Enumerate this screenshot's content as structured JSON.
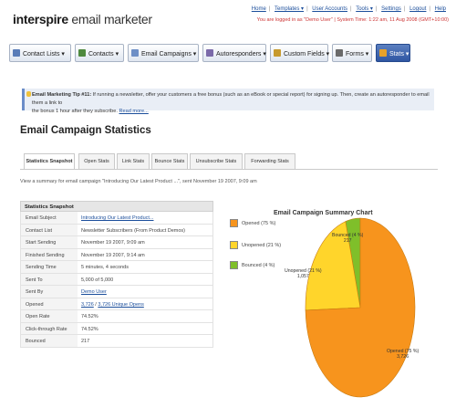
{
  "header": {
    "logo_prefix": "interspire",
    "logo_suffix": " email marketer",
    "links": [
      "Home",
      "Templates ▾",
      "User Accounts",
      "Tools ▾",
      "Settings",
      "Logout",
      "Help"
    ],
    "login_text": "You are logged in as \"Demo User\" | System Time: 1:22 am, 11 Aug 2008 (GMT+10:00)"
  },
  "nav": {
    "items": [
      {
        "label": "Contact Lists ▾",
        "icon": "contact-lists-icon",
        "color": "#5a7db8"
      },
      {
        "label": "Contacts ▾",
        "icon": "contacts-icon",
        "color": "#4f8a3e"
      },
      {
        "label": "Email Campaigns ▾",
        "icon": "email-campaigns-icon",
        "color": "#6d8fc6"
      },
      {
        "label": "Autoresponders ▾",
        "icon": "autoresponders-icon",
        "color": "#7b6aa9"
      },
      {
        "label": "Custom Fields ▾",
        "icon": "custom-fields-icon",
        "color": "#c79a2d"
      },
      {
        "label": "Forms ▾",
        "icon": "forms-icon",
        "color": "#6a6a6a"
      },
      {
        "label": "Stats ▾",
        "icon": "stats-icon",
        "color": "#e6a12a"
      }
    ]
  },
  "tip": {
    "bold": "Email Marketing Tip #11:",
    "text": " If running a newsletter, offer your customers a free bonus (such as an eBook or special report) for signing up. Then, create an autoresponder to email them a link to",
    "text2": "the bonus 1 hour after they subscribe.",
    "read_more": "Read more..."
  },
  "page_title": "Email Campaign Statistics",
  "tabs": [
    "Statistics Snapshot",
    "Open Stats",
    "Link Stats",
    "Bounce Stats",
    "Unsubscribe Stats",
    "Forwarding Stats"
  ],
  "summary": "View a summary for email campaign \"Introducing Our Latest Product ...\", sent November 19 2007, 9:09 am",
  "stats": {
    "heading": "Statistics Snapshot",
    "rows": [
      {
        "label": "Email Subject",
        "value": "Introducing Our Latest Product...",
        "link": true
      },
      {
        "label": "Contact List",
        "value": "Newsletter Subscribers (From Product Demos)",
        "link": false
      },
      {
        "label": "Start Sending",
        "value": "November 19 2007, 9:09 am",
        "link": false
      },
      {
        "label": "Finished Sending",
        "value": "November 19 2007, 9:14 am",
        "link": false
      },
      {
        "label": "Sending Time",
        "value": "5 minutes, 4 seconds",
        "link": false
      },
      {
        "label": "Sent To",
        "value": "5,000 of 5,000",
        "link": false
      },
      {
        "label": "Sent By",
        "value": "Demo User",
        "link": true
      },
      {
        "label": "Opened",
        "value": "3,726",
        "value2": " / ",
        "value3": "3,726 Unique Opens",
        "link": "split"
      },
      {
        "label": "Open Rate",
        "value": "74.52%",
        "link": false
      },
      {
        "label": "Click-through Rate",
        "value": "74.52%",
        "link": false
      },
      {
        "label": "Bounced",
        "value": "217",
        "link": false
      }
    ]
  },
  "chart_data": {
    "type": "pie",
    "title": "Email Campaign Summary Chart",
    "legend_placement": "left",
    "slices": [
      {
        "name": "Opened (75 %)",
        "value": 3726,
        "percent": 75,
        "color": "#f7941d",
        "label": "Opened (75 %)",
        "label2": "3,726"
      },
      {
        "name": "Unopened (21 %)",
        "value": 1057,
        "percent": 21,
        "color": "#ffd52b",
        "label": "Unopened (21 %)",
        "label2": "1,057"
      },
      {
        "name": "Bounced (4 %)",
        "value": 217,
        "percent": 4,
        "color": "#7fbf2a",
        "label": "Bounced (4 %)",
        "label2": "217"
      }
    ]
  }
}
